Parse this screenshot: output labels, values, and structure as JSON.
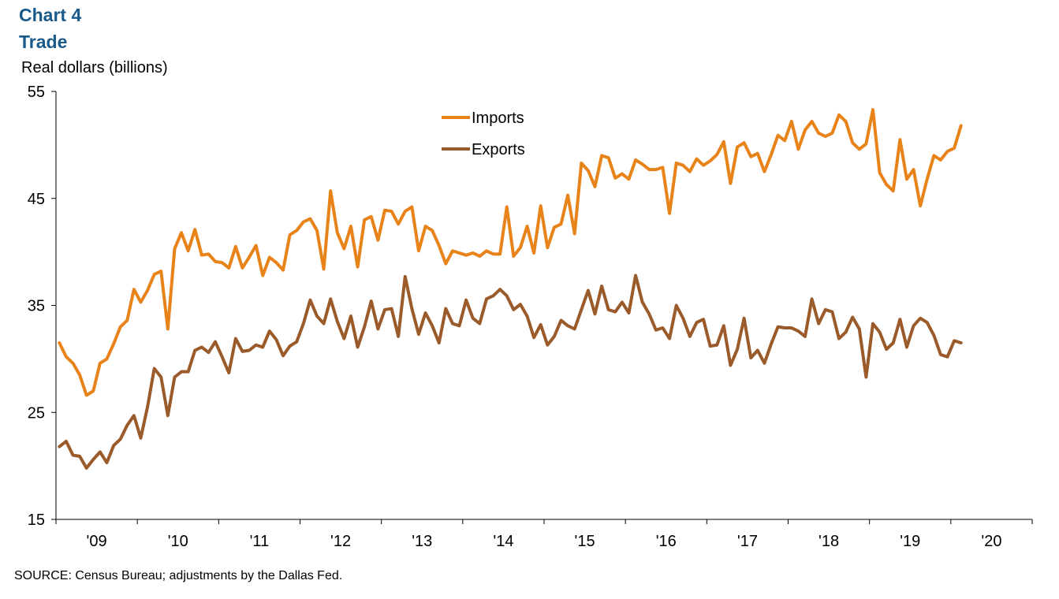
{
  "header": {
    "chart_number": "Chart 4",
    "title": "Trade",
    "y_unit": "Real dollars (billions)"
  },
  "footer": {
    "source": "SOURCE: Census Bureau; adjustments by the Dallas Fed."
  },
  "colors": {
    "imports": "#e8831a",
    "exports": "#9a5a2a"
  },
  "chart_data": {
    "type": "line",
    "title": "Trade",
    "ylabel": "Real dollars (billions)",
    "ylim": [
      15,
      55
    ],
    "yticks": [
      15,
      25,
      35,
      45,
      55
    ],
    "xlim": [
      "2009-01",
      "2020-12"
    ],
    "xtick_labels": [
      "'09",
      "'10",
      "'11",
      "'12",
      "'13",
      "'14",
      "'15",
      "'16",
      "'17",
      "'18",
      "'19",
      "'20"
    ],
    "x_start": "2009-01",
    "frequency": "monthly",
    "legend": {
      "position": "top-center",
      "entries": [
        "Imports",
        "Exports"
      ]
    },
    "series": [
      {
        "name": "Imports",
        "values": [
          31.5,
          30.2,
          29.6,
          28.5,
          26.6,
          27.0,
          29.6,
          30.0,
          31.4,
          33.0,
          33.6,
          36.5,
          35.3,
          36.4,
          37.9,
          38.2,
          32.8,
          40.3,
          41.8,
          40.1,
          42.1,
          39.7,
          39.8,
          39.1,
          39.0,
          38.5,
          40.5,
          38.5,
          39.5,
          40.6,
          37.8,
          39.5,
          39.0,
          38.3,
          41.6,
          42.0,
          42.8,
          43.1,
          42.0,
          38.4,
          45.7,
          41.8,
          40.3,
          42.4,
          38.6,
          43.0,
          43.3,
          41.1,
          43.9,
          43.8,
          42.6,
          43.8,
          44.2,
          40.1,
          42.4,
          42.0,
          40.6,
          38.9,
          40.1,
          39.9,
          39.7,
          39.9,
          39.6,
          40.1,
          39.8,
          39.8,
          44.2,
          39.6,
          40.4,
          42.4,
          39.9,
          44.3,
          40.4,
          42.3,
          42.6,
          45.3,
          41.7,
          48.3,
          47.6,
          46.1,
          49.0,
          48.8,
          46.9,
          47.3,
          46.8,
          48.6,
          48.2,
          47.7,
          47.7,
          47.9,
          43.6,
          48.3,
          48.1,
          47.5,
          48.7,
          48.1,
          48.5,
          49.1,
          50.3,
          46.4,
          49.8,
          50.2,
          48.9,
          49.2,
          47.5,
          49.1,
          50.9,
          50.4,
          52.2,
          49.6,
          51.4,
          52.2,
          51.1,
          50.8,
          51.1,
          52.8,
          52.2,
          50.2,
          49.6,
          50.1,
          53.3,
          47.4,
          46.3,
          45.7,
          50.5,
          46.8,
          47.7,
          44.3,
          46.8,
          49.0,
          48.6,
          49.4,
          49.7,
          51.8
        ]
      },
      {
        "name": "Exports",
        "values": [
          21.8,
          22.3,
          21.0,
          20.9,
          19.8,
          20.6,
          21.3,
          20.3,
          21.9,
          22.5,
          23.8,
          24.7,
          22.6,
          25.5,
          29.1,
          28.3,
          24.7,
          28.3,
          28.8,
          28.8,
          30.8,
          31.1,
          30.6,
          31.6,
          30.2,
          28.7,
          31.9,
          30.7,
          30.8,
          31.3,
          31.1,
          32.6,
          31.8,
          30.3,
          31.2,
          31.6,
          33.3,
          35.5,
          34.0,
          33.3,
          35.6,
          33.5,
          31.9,
          34.0,
          31.1,
          33.0,
          35.4,
          32.8,
          34.6,
          34.7,
          32.1,
          37.7,
          34.7,
          32.3,
          34.3,
          33.1,
          31.5,
          34.7,
          33.3,
          33.1,
          35.5,
          33.8,
          33.3,
          35.6,
          35.9,
          36.5,
          35.9,
          34.6,
          35.1,
          34.0,
          32.0,
          33.2,
          31.3,
          32.1,
          33.6,
          33.1,
          32.8,
          34.6,
          36.4,
          34.2,
          36.8,
          34.6,
          34.4,
          35.3,
          34.3,
          37.8,
          35.3,
          34.2,
          32.7,
          32.9,
          31.9,
          35.0,
          33.8,
          32.1,
          33.4,
          33.7,
          31.2,
          31.3,
          33.1,
          29.4,
          30.9,
          33.8,
          30.1,
          30.8,
          29.6,
          31.4,
          33.0,
          32.9,
          32.9,
          32.6,
          32.1,
          35.6,
          33.3,
          34.6,
          34.4,
          31.9,
          32.5,
          33.9,
          32.8,
          28.3,
          33.3,
          32.5,
          30.9,
          31.5,
          33.7,
          31.1,
          33.1,
          33.8,
          33.4,
          32.2,
          30.4,
          30.2,
          31.7,
          31.5
        ]
      }
    ]
  }
}
